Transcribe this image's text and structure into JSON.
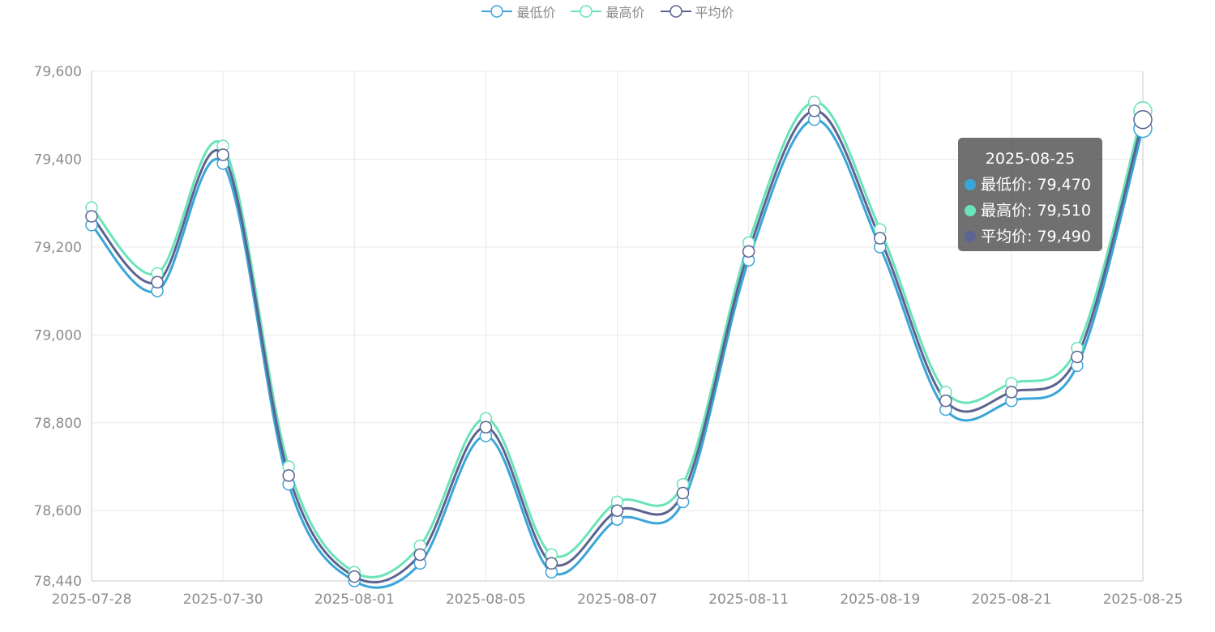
{
  "colors": {
    "min": "#3aa5d8",
    "max": "#6ae3b8",
    "avg": "#5c6390",
    "grid": "#e8e8e8",
    "axis": "#c8c8c8"
  },
  "legend": [
    {
      "label": "最低价",
      "color": "#3aa5d8"
    },
    {
      "label": "最高价",
      "color": "#6ae3b8"
    },
    {
      "label": "平均价",
      "color": "#5c6390"
    }
  ],
  "tooltip": {
    "title": "2025-08-25",
    "rows": [
      {
        "label": "最低价: 79,470",
        "color": "#3aa5d8"
      },
      {
        "label": "最高价: 79,510",
        "color": "#6ae3b8"
      },
      {
        "label": "平均价: 79,490",
        "color": "#5c6390"
      }
    ]
  },
  "chart_data": {
    "type": "line",
    "title": "",
    "xlabel": "",
    "ylabel": "",
    "x": [
      "2025-07-28",
      "",
      "2025-07-30",
      "",
      "2025-08-01",
      "",
      "2025-08-05",
      "",
      "2025-08-07",
      "",
      "2025-08-11",
      "",
      "2025-08-19",
      "",
      "2025-08-21",
      "",
      "2025-08-25"
    ],
    "x_tick_labels": [
      "2025-07-28",
      "2025-07-30",
      "2025-08-01",
      "2025-08-05",
      "2025-08-07",
      "2025-08-11",
      "2025-08-19",
      "2025-08-21",
      "2025-08-25"
    ],
    "ylim": [
      78440,
      79600
    ],
    "y_ticks": [
      78440,
      78600,
      78800,
      79000,
      79200,
      79400,
      79600
    ],
    "y_tick_labels": [
      "78,440",
      "78,600",
      "78,800",
      "79,000",
      "79,200",
      "79,400",
      "79,600"
    ],
    "grid": true,
    "legend_position": "top-center",
    "highlighted_index": 16,
    "series": [
      {
        "name": "最低价",
        "values": [
          79250,
          79100,
          79390,
          78660,
          78440,
          78480,
          78770,
          78460,
          78580,
          78620,
          79170,
          79490,
          79200,
          78830,
          78850,
          78930,
          79470
        ]
      },
      {
        "name": "最高价",
        "values": [
          79290,
          79140,
          79430,
          78700,
          78460,
          78520,
          78810,
          78500,
          78620,
          78660,
          79210,
          79530,
          79240,
          78870,
          78890,
          78970,
          79510
        ]
      },
      {
        "name": "平均价",
        "values": [
          79270,
          79120,
          79410,
          78680,
          78450,
          78500,
          78790,
          78480,
          78600,
          78640,
          79190,
          79510,
          79220,
          78850,
          78870,
          78950,
          79490
        ]
      }
    ]
  }
}
